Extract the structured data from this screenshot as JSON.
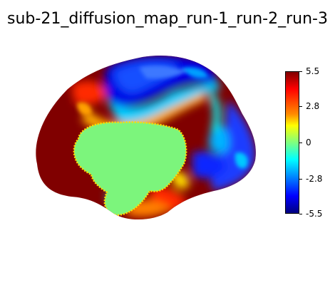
{
  "figure": {
    "title": "sub-21_diffusion_map_run-1_run-2_run-3"
  },
  "colorbar": {
    "colormap": "jet",
    "vmin": -5.5,
    "vmax": 5.5,
    "ticks": [
      {
        "value": 5.5,
        "label": "5.5"
      },
      {
        "value": 2.8,
        "label": "2.8"
      },
      {
        "value": 0,
        "label": "0"
      },
      {
        "value": -2.8,
        "label": "-2.8"
      },
      {
        "value": -5.5,
        "label": "-5.5"
      }
    ]
  },
  "colors": {
    "max": "#800000",
    "red": "#ff0000",
    "orange": "#ff8c00",
    "yellow": "#ffff00",
    "zero": "#7fff7f",
    "cyan": "#00ffff",
    "blue": "#0000ff",
    "min": "#000080",
    "medial_wall": "#7cf57c"
  }
}
